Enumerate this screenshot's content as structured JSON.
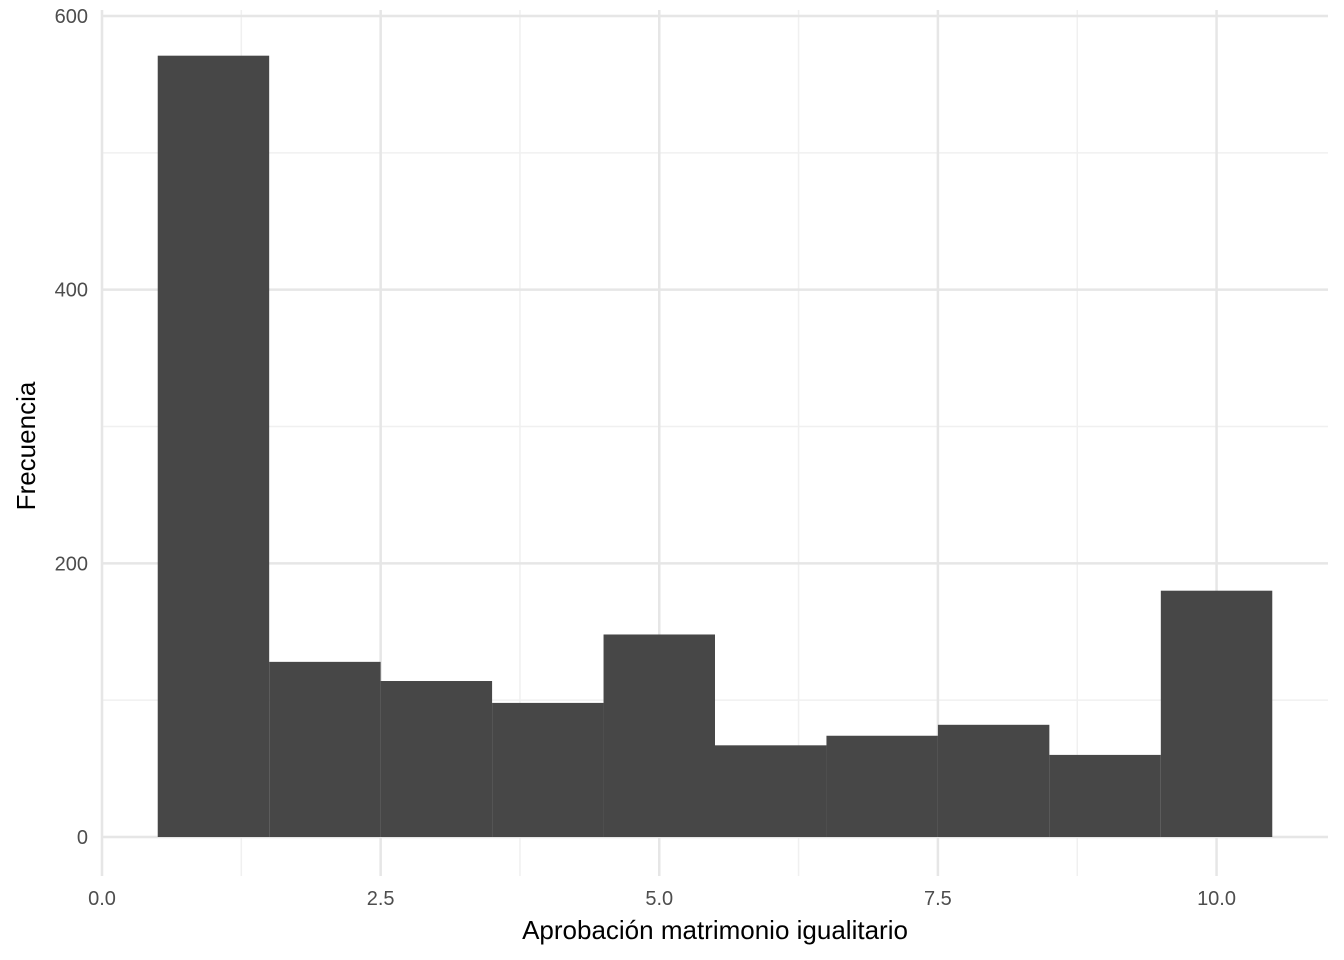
{
  "chart_data": {
    "type": "bar",
    "subtype": "histogram",
    "title": "",
    "xlabel": "Aprobación matrimonio igualitario",
    "ylabel": "Frecuencia",
    "xlim": [
      0.0,
      11.0
    ],
    "ylim": [
      -24,
      600
    ],
    "x_ticks": [
      0.0,
      2.5,
      5.0,
      7.5,
      10.0
    ],
    "x_tick_labels": [
      "0.0",
      "2.5",
      "5.0",
      "7.5",
      "10.0"
    ],
    "y_ticks": [
      0,
      200,
      400,
      600
    ],
    "y_tick_labels": [
      "0",
      "200",
      "400",
      "600"
    ],
    "grid": true,
    "bar_color": "#474747",
    "grid_major_color": "#e6e6e6",
    "grid_minor_color": "#f0f0f0",
    "bins": [
      {
        "x0": 0.5,
        "x1": 1.5,
        "value": 571
      },
      {
        "x0": 1.5,
        "x1": 2.5,
        "value": 128
      },
      {
        "x0": 2.5,
        "x1": 3.5,
        "value": 114
      },
      {
        "x0": 3.5,
        "x1": 4.5,
        "value": 98
      },
      {
        "x0": 4.5,
        "x1": 5.5,
        "value": 148
      },
      {
        "x0": 5.5,
        "x1": 6.5,
        "value": 67
      },
      {
        "x0": 6.5,
        "x1": 7.5,
        "value": 74
      },
      {
        "x0": 7.5,
        "x1": 8.5,
        "value": 82
      },
      {
        "x0": 8.5,
        "x1": 9.5,
        "value": 60
      },
      {
        "x0": 9.5,
        "x1": 10.5,
        "value": 180
      }
    ]
  }
}
